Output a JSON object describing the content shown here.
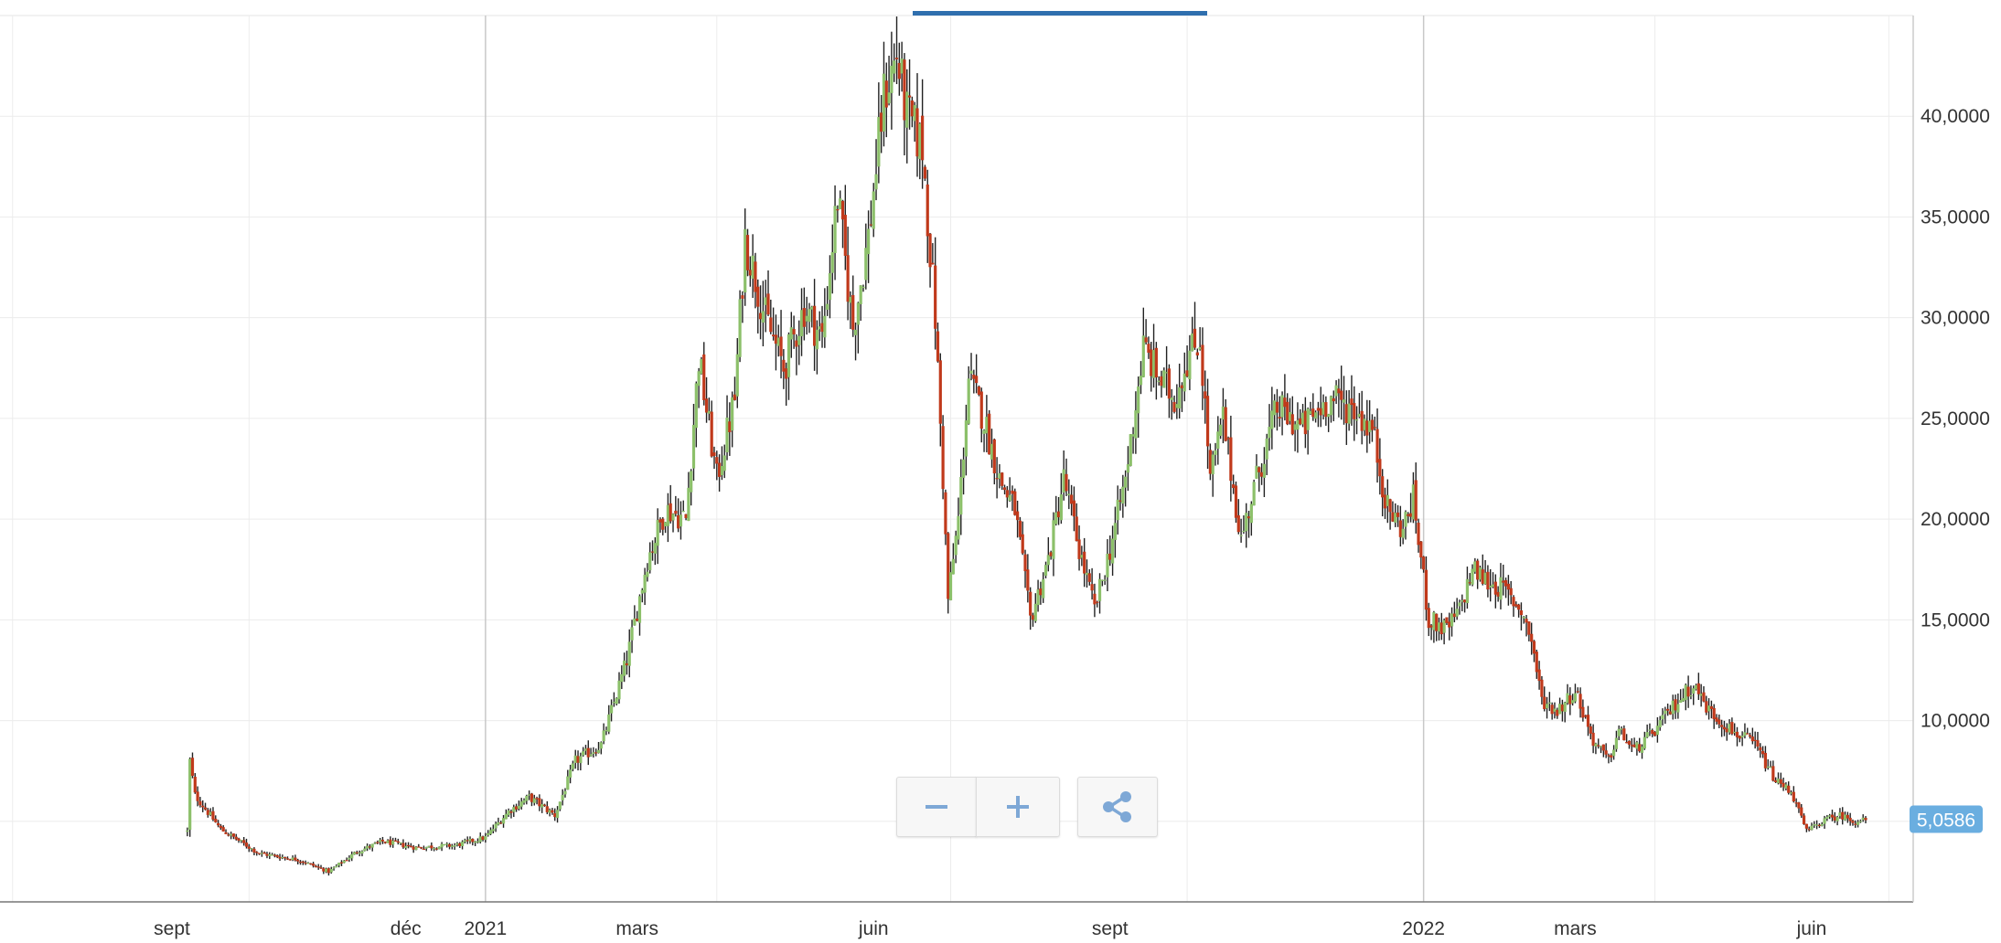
{
  "chart_data": {
    "type": "candlestick",
    "x_tick_labels": [
      "sept",
      "déc",
      "2021",
      "mars",
      "juin",
      "sept",
      "2022",
      "mars",
      "juin"
    ],
    "y_tick_labels": [
      "10,0000",
      "15,0000",
      "20,0000",
      "25,0000",
      "30,0000",
      "35,0000",
      "40,0000"
    ],
    "y_ticks": [
      10,
      15,
      20,
      25,
      30,
      35,
      40
    ],
    "ylim": [
      1,
      45
    ],
    "grid": true,
    "last_price": 5.0586,
    "last_price_label": "5,0586",
    "colors": {
      "up": "#8cc06a",
      "down": "#c0391b",
      "wick": "#222222",
      "price_badge": "#6aaee0",
      "active_tab": "#2f6fae"
    },
    "close_keypoints": [
      [
        "2020-09-07",
        4.5
      ],
      [
        "2020-09-08",
        8.0
      ],
      [
        "2020-09-10",
        6.3
      ],
      [
        "2020-09-20",
        4.6
      ],
      [
        "2020-10-05",
        3.4
      ],
      [
        "2020-10-20",
        3.1
      ],
      [
        "2020-11-01",
        2.5
      ],
      [
        "2020-11-12",
        3.5
      ],
      [
        "2020-11-22",
        4.0
      ],
      [
        "2020-12-05",
        3.7
      ],
      [
        "2020-12-20",
        3.8
      ],
      [
        "2021-01-01",
        4.2
      ],
      [
        "2021-01-10",
        5.5
      ],
      [
        "2021-01-18",
        6.2
      ],
      [
        "2021-01-28",
        5.3
      ],
      [
        "2021-02-05",
        8.0
      ],
      [
        "2021-02-15",
        8.8
      ],
      [
        "2021-02-25",
        13.0
      ],
      [
        "2021-03-05",
        18.0
      ],
      [
        "2021-03-12",
        20.5
      ],
      [
        "2021-03-20",
        20.0
      ],
      [
        "2021-03-25",
        28.0
      ],
      [
        "2021-04-01",
        22.0
      ],
      [
        "2021-04-08",
        26.0
      ],
      [
        "2021-04-12",
        34.0
      ],
      [
        "2021-04-20",
        30.0
      ],
      [
        "2021-04-27",
        27.5
      ],
      [
        "2021-05-05",
        30.5
      ],
      [
        "2021-05-12",
        29.0
      ],
      [
        "2021-05-18",
        36.0
      ],
      [
        "2021-05-24",
        29.5
      ],
      [
        "2021-05-30",
        34.0
      ],
      [
        "2021-06-05",
        41.0
      ],
      [
        "2021-06-10",
        43.0
      ],
      [
        "2021-06-14",
        40.0
      ],
      [
        "2021-06-20",
        38.5
      ],
      [
        "2021-06-25",
        30.0
      ],
      [
        "2021-06-28",
        22.0
      ],
      [
        "2021-06-30",
        16.0
      ],
      [
        "2021-07-04",
        20.0
      ],
      [
        "2021-07-08",
        27.0
      ],
      [
        "2021-07-14",
        25.0
      ],
      [
        "2021-07-20",
        22.0
      ],
      [
        "2021-07-26",
        20.5
      ],
      [
        "2021-08-01",
        15.0
      ],
      [
        "2021-08-08",
        18.0
      ],
      [
        "2021-08-14",
        22.0
      ],
      [
        "2021-08-20",
        18.5
      ],
      [
        "2021-08-26",
        15.5
      ],
      [
        "2021-09-01",
        18.5
      ],
      [
        "2021-09-07",
        22.0
      ],
      [
        "2021-09-14",
        28.5
      ],
      [
        "2021-09-20",
        27.0
      ],
      [
        "2021-09-26",
        26.0
      ],
      [
        "2021-10-01",
        28.0
      ],
      [
        "2021-10-06",
        29.0
      ],
      [
        "2021-10-10",
        22.0
      ],
      [
        "2021-10-15",
        25.0
      ],
      [
        "2021-10-22",
        19.0
      ],
      [
        "2021-10-28",
        22.0
      ],
      [
        "2021-11-05",
        25.5
      ],
      [
        "2021-11-15",
        24.5
      ],
      [
        "2021-11-25",
        26.0
      ],
      [
        "2021-12-05",
        25.5
      ],
      [
        "2021-12-12",
        24.5
      ],
      [
        "2021-12-18",
        20.5
      ],
      [
        "2021-12-24",
        19.5
      ],
      [
        "2021-12-28",
        21.0
      ],
      [
        "2022-01-03",
        15.0
      ],
      [
        "2022-01-10",
        14.5
      ],
      [
        "2022-01-15",
        15.5
      ],
      [
        "2022-01-20",
        17.5
      ],
      [
        "2022-01-25",
        17.0
      ],
      [
        "2022-02-01",
        16.5
      ],
      [
        "2022-02-08",
        15.5
      ],
      [
        "2022-02-12",
        14.0
      ],
      [
        "2022-02-16",
        11.0
      ],
      [
        "2022-02-22",
        10.5
      ],
      [
        "2022-03-01",
        11.5
      ],
      [
        "2022-03-08",
        9.0
      ],
      [
        "2022-03-14",
        8.0
      ],
      [
        "2022-03-18",
        9.5
      ],
      [
        "2022-03-24",
        8.5
      ],
      [
        "2022-04-01",
        9.5
      ],
      [
        "2022-04-10",
        11.0
      ],
      [
        "2022-04-16",
        11.8
      ],
      [
        "2022-04-22",
        10.5
      ],
      [
        "2022-05-01",
        9.5
      ],
      [
        "2022-05-10",
        8.8
      ],
      [
        "2022-05-18",
        7.0
      ],
      [
        "2022-05-24",
        6.5
      ],
      [
        "2022-05-30",
        4.5
      ],
      [
        "2022-06-05",
        5.0
      ],
      [
        "2022-06-12",
        5.3
      ],
      [
        "2022-06-18",
        5.0
      ],
      [
        "2022-06-22",
        5.0586
      ]
    ]
  },
  "toolbar": {
    "zoom_out_symbol": "−",
    "zoom_in_symbol": "+",
    "share_icon": "share-icon"
  }
}
